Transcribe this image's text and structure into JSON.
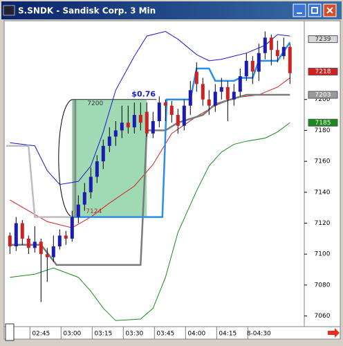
{
  "chart_data": {
    "type": "candlestick",
    "title": "S.SNDK - Sandisk Corp. 3 Min",
    "xlim": [
      -0.7,
      47.3
    ],
    "xticks": [
      {
        "value": 5,
        "label": "02:45"
      },
      {
        "value": 10,
        "label": "03:00"
      },
      {
        "value": 15,
        "label": "03:15"
      },
      {
        "value": 20,
        "label": "03:30"
      },
      {
        "value": 25,
        "label": "03:45"
      },
      {
        "value": 30,
        "label": "04:00"
      },
      {
        "value": 35,
        "label": "04:15"
      },
      {
        "value": 40,
        "label": "8-04:30"
      }
    ],
    "ylim": [
      7054,
      7250
    ],
    "yticks": [
      7060,
      7080,
      7100,
      7120,
      7140,
      7160,
      7180,
      7200
    ],
    "up_color": "#1c1cb0",
    "down_color": "#cc2222",
    "open": [
      7112,
      7105,
      7120,
      7110,
      7104,
      7108,
      7100,
      7098,
      7105,
      7112,
      7110,
      7124,
      7132,
      7140,
      7150,
      7160,
      7170,
      7176,
      7180,
      7185,
      7182,
      7190,
      7192,
      7178,
      7186,
      7198,
      7196,
      7190,
      7183,
      7196,
      7218,
      7210,
      7200,
      7196,
      7205,
      7208,
      7200,
      7205,
      7215,
      7225,
      7218,
      7230,
      7240,
      7232,
      7228,
      7234
    ],
    "high": [
      7114,
      7124,
      7122,
      7112,
      7118,
      7110,
      7104,
      7112,
      7116,
      7115,
      7128,
      7138,
      7146,
      7156,
      7164,
      7174,
      7182,
      7186,
      7196,
      7196,
      7198,
      7198,
      7198,
      7192,
      7202,
      7200,
      7199,
      7194,
      7200,
      7212,
      7224,
      7214,
      7206,
      7210,
      7214,
      7212,
      7210,
      7220,
      7230,
      7228,
      7236,
      7244,
      7242,
      7238,
      7240,
      7236
    ],
    "low": [
      7100,
      7102,
      7106,
      7100,
      7101,
      7069,
      7082,
      7095,
      7103,
      7106,
      7108,
      7120,
      7128,
      7136,
      7146,
      7155,
      7166,
      7170,
      7175,
      7178,
      7178,
      7180,
      7176,
      7175,
      7182,
      7186,
      7185,
      7178,
      7180,
      7190,
      7205,
      7196,
      7190,
      7192,
      7200,
      7186,
      7196,
      7202,
      7212,
      7210,
      7212,
      7226,
      7222,
      7224,
      7226,
      7210
    ],
    "close": [
      7105,
      7120,
      7110,
      7104,
      7108,
      7100,
      7098,
      7105,
      7112,
      7110,
      7124,
      7132,
      7140,
      7150,
      7160,
      7170,
      7176,
      7180,
      7185,
      7182,
      7190,
      7185,
      7178,
      7186,
      7198,
      7196,
      7190,
      7183,
      7196,
      7206,
      7210,
      7200,
      7196,
      7205,
      7208,
      7200,
      7205,
      7215,
      7225,
      7218,
      7230,
      7240,
      7232,
      7228,
      7234,
      7217
    ],
    "lines": [
      {
        "color": "#1a1acc",
        "x": [
          0,
          4,
          6,
          8,
          11,
          13,
          15,
          17,
          20,
          22,
          25,
          27,
          30,
          32,
          34,
          36,
          38,
          41,
          43,
          45
        ],
        "values": [
          7172,
          7170,
          7154,
          7145,
          7147,
          7157,
          7179,
          7206,
          7228,
          7241,
          7244,
          7239,
          7229,
          7225,
          7226,
          7228,
          7230,
          7235,
          7242,
          7241
        ]
      },
      {
        "color": "#1a8a1a",
        "x": [
          0,
          4,
          7,
          11,
          13,
          15,
          17,
          21,
          23,
          25,
          27,
          30,
          32,
          34,
          36,
          38,
          41,
          43,
          45
        ],
        "values": [
          7085,
          7087,
          7091,
          7085,
          7076,
          7065,
          7057,
          7058,
          7065,
          7085,
          7114,
          7141,
          7157,
          7166,
          7171,
          7173,
          7175,
          7179,
          7185
        ]
      },
      {
        "color": "#d42020",
        "x": [
          0,
          3,
          6,
          10,
          13,
          16,
          20,
          23,
          26,
          30,
          33,
          36,
          40,
          43,
          45
        ],
        "values": [
          7135,
          7128,
          7121,
          7117,
          7124,
          7133,
          7144,
          7158,
          7178,
          7189,
          7196,
          7201,
          7203,
          7208,
          7214
        ]
      },
      {
        "color": "#bdbdbd",
        "x": [
          -0.6,
          3,
          4,
          10
        ],
        "values": [
          7170,
          7170,
          7124,
          7124
        ]
      },
      {
        "color": "#7a7a7a",
        "x": [
          0,
          5,
          7.5,
          21,
          22,
          25,
          27,
          31,
          33,
          38,
          45
        ],
        "values": [
          7106,
          7106,
          7093,
          7093,
          7180,
          7180,
          7185,
          7190,
          7197,
          7203,
          7203
        ]
      },
      {
        "color": "#2a8ee8",
        "x": [
          10,
          24.5,
          25.2,
          29,
          30,
          32,
          33,
          36,
          37,
          39,
          40,
          43,
          45
        ],
        "values": [
          7124,
          7124,
          7200,
          7200,
          7220,
          7220,
          7212,
          7212,
          7214,
          7214,
          7225,
          7225,
          7237
        ]
      }
    ],
    "zone": {
      "x": [
        10,
        22
      ],
      "low": 7124,
      "high": 7200,
      "color": "#8fd4a8",
      "label": "$0.76"
    },
    "price_markers": [
      {
        "value": 7239,
        "color": "#d8d8d8"
      },
      {
        "value": 7218,
        "color": "#d42020"
      },
      {
        "value": 7203,
        "color": "#9a9a9a"
      },
      {
        "value": 7185,
        "color": "#1a8a1a"
      }
    ]
  }
}
